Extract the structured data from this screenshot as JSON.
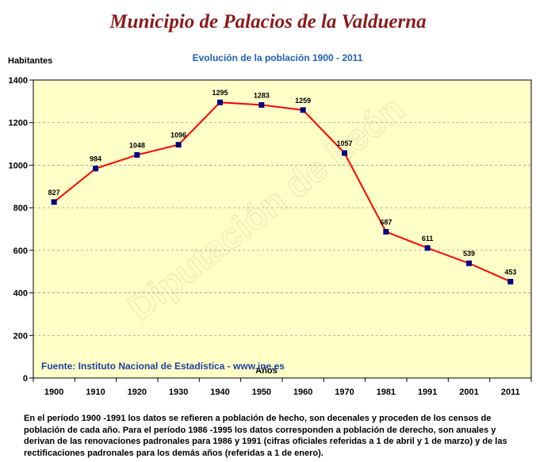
{
  "title": "Municipio de Palacios de la Valduerna",
  "chart_data": {
    "type": "line",
    "subtitle": "Evolución de la población 1900 - 2011",
    "ylabel": "Habitantes",
    "xlabel": "Años",
    "categories": [
      "1900",
      "1910",
      "1920",
      "1930",
      "1940",
      "1950",
      "1960",
      "1970",
      "1981",
      "1991",
      "2001",
      "2011"
    ],
    "values": [
      827,
      984,
      1048,
      1096,
      1295,
      1283,
      1259,
      1057,
      687,
      611,
      539,
      453
    ],
    "ylim": [
      0,
      1400
    ],
    "yticks": [
      0,
      200,
      400,
      600,
      800,
      1000,
      1200,
      1400
    ],
    "grid": true,
    "source": "Fuente: Instituto Nacional de Estadística - www.ine.es",
    "watermark": "Diputación de León"
  },
  "colors": {
    "plot_bg": "#ffffc8",
    "line": "#ff0000",
    "marker": "#000080",
    "title": "#8b1a1a",
    "subtitle": "#1f5fb5",
    "source": "#1f3fa0",
    "gridline": "#9a9a9a"
  },
  "footnote": "En el período 1900 -1991 los datos se refieren a población de hecho, son decenales y proceden de los censos de población de cada año. Para el período 1986 -1995 los datos corresponden a población de derecho, son anuales y derivan de las renovaciones padronales para 1986 y 1991 (cifras oficiales referidas a 1 de abril y 1 de marzo) y de las rectificaciones padronales para los demás años (referidas a 1 de enero)."
}
